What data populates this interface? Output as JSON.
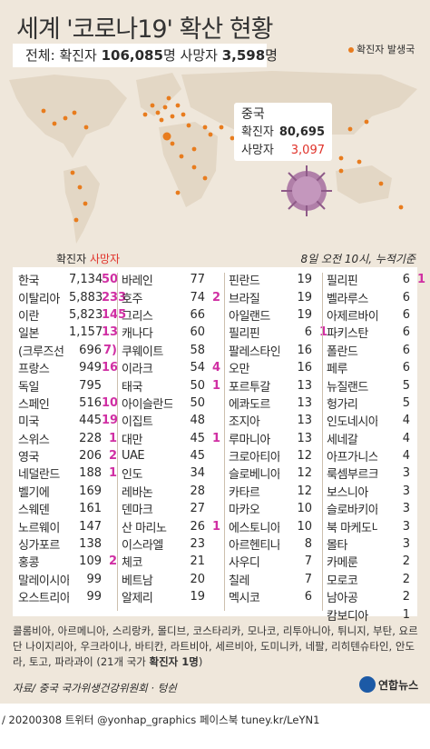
{
  "title": "세계 '코로나19' 확산 현황",
  "total": {
    "prefix": "전체: ",
    "confirmed_label": "확진자 ",
    "confirmed": "106,085",
    "unit1": "명 ",
    "deaths_label": "사망자 ",
    "deaths": "3,598",
    "unit2": "명"
  },
  "legend_dot": "확진자 발생국",
  "china_popup": {
    "name": "중국",
    "confirmed_label": "확진자",
    "confirmed": "80,695",
    "deaths_label": "사망자",
    "deaths": "3,097"
  },
  "as_of": "8일 오전 10시, 누적기준",
  "table_header": {
    "confirmed": "확진자",
    "deaths": "사망자"
  },
  "accent_colors": {
    "deaths": "#d02fa3",
    "dot": "#e87c1e",
    "background": "#efe7db"
  },
  "countries": [
    [
      {
        "name": "한국",
        "confirmed": "7,134",
        "deaths": "50"
      },
      {
        "name": "이탈리아",
        "confirmed": "5,883",
        "deaths": "233"
      },
      {
        "name": "이란",
        "confirmed": "5,823",
        "deaths": "145"
      },
      {
        "name": "일본",
        "confirmed": "1,157",
        "deaths": "13"
      },
      {
        "name": "(크루즈선",
        "confirmed": "696",
        "deaths": "7)"
      },
      {
        "name": "프랑스",
        "confirmed": "949",
        "deaths": "16"
      },
      {
        "name": "독일",
        "confirmed": "795",
        "deaths": ""
      },
      {
        "name": "스페인",
        "confirmed": "516",
        "deaths": "10"
      },
      {
        "name": "미국",
        "confirmed": "445",
        "deaths": "19"
      },
      {
        "name": "스위스",
        "confirmed": "228",
        "deaths": "1"
      },
      {
        "name": "영국",
        "confirmed": "206",
        "deaths": "2"
      },
      {
        "name": "네덜란드",
        "confirmed": "188",
        "deaths": "1"
      },
      {
        "name": "벨기에",
        "confirmed": "169",
        "deaths": ""
      },
      {
        "name": "스웨덴",
        "confirmed": "161",
        "deaths": ""
      },
      {
        "name": "노르웨이",
        "confirmed": "147",
        "deaths": ""
      },
      {
        "name": "싱가포르",
        "confirmed": "138",
        "deaths": ""
      },
      {
        "name": "홍콩",
        "confirmed": "109",
        "deaths": "2"
      },
      {
        "name": "말레이시아",
        "confirmed": "99",
        "deaths": ""
      },
      {
        "name": "오스트리아",
        "confirmed": "99",
        "deaths": ""
      }
    ],
    [
      {
        "name": "바레인",
        "confirmed": "77",
        "deaths": ""
      },
      {
        "name": "호주",
        "confirmed": "74",
        "deaths": "2"
      },
      {
        "name": "그리스",
        "confirmed": "66",
        "deaths": ""
      },
      {
        "name": "캐나다",
        "confirmed": "60",
        "deaths": ""
      },
      {
        "name": "쿠웨이트",
        "confirmed": "58",
        "deaths": ""
      },
      {
        "name": "이라크",
        "confirmed": "54",
        "deaths": "4"
      },
      {
        "name": "태국",
        "confirmed": "50",
        "deaths": "1"
      },
      {
        "name": "아이슬란드",
        "confirmed": "50",
        "deaths": ""
      },
      {
        "name": "이집트",
        "confirmed": "48",
        "deaths": ""
      },
      {
        "name": "대만",
        "confirmed": "45",
        "deaths": "1"
      },
      {
        "name": "UAE",
        "confirmed": "45",
        "deaths": ""
      },
      {
        "name": "인도",
        "confirmed": "34",
        "deaths": ""
      },
      {
        "name": "레바논",
        "confirmed": "28",
        "deaths": ""
      },
      {
        "name": "덴마크",
        "confirmed": "27",
        "deaths": ""
      },
      {
        "name": "산 마리노",
        "confirmed": "26",
        "deaths": "1"
      },
      {
        "name": "이스라엘",
        "confirmed": "23",
        "deaths": ""
      },
      {
        "name": "체코",
        "confirmed": "21",
        "deaths": ""
      },
      {
        "name": "베트남",
        "confirmed": "20",
        "deaths": ""
      },
      {
        "name": "알제리",
        "confirmed": "19",
        "deaths": ""
      }
    ],
    [
      {
        "name": "핀란드",
        "confirmed": "19",
        "deaths": ""
      },
      {
        "name": "브라질",
        "confirmed": "19",
        "deaths": ""
      },
      {
        "name": "아일랜드",
        "confirmed": "19",
        "deaths": ""
      },
      {
        "name": "필리핀",
        "confirmed": "6",
        "deaths": "1"
      },
      {
        "name": "팔레스타인",
        "confirmed": "16",
        "deaths": ""
      },
      {
        "name": "오만",
        "confirmed": "16",
        "deaths": ""
      },
      {
        "name": "포르투갈",
        "confirmed": "13",
        "deaths": ""
      },
      {
        "name": "에콰도르",
        "confirmed": "13",
        "deaths": ""
      },
      {
        "name": "조지아",
        "confirmed": "13",
        "deaths": ""
      },
      {
        "name": "루마니아",
        "confirmed": "13",
        "deaths": ""
      },
      {
        "name": "크로아티아",
        "confirmed": "12",
        "deaths": ""
      },
      {
        "name": "슬로베니아",
        "confirmed": "12",
        "deaths": ""
      },
      {
        "name": "카타르",
        "confirmed": "12",
        "deaths": ""
      },
      {
        "name": "마카오",
        "confirmed": "10",
        "deaths": ""
      },
      {
        "name": "에스토니아",
        "confirmed": "10",
        "deaths": ""
      },
      {
        "name": "아르헨티나",
        "confirmed": "8",
        "deaths": ""
      },
      {
        "name": "사우디",
        "confirmed": "7",
        "deaths": ""
      },
      {
        "name": "칠레",
        "confirmed": "7",
        "deaths": ""
      },
      {
        "name": "멕시코",
        "confirmed": "6",
        "deaths": ""
      }
    ],
    [
      {
        "name": "필리핀",
        "confirmed": "6",
        "deaths": "1"
      },
      {
        "name": "벨라루스",
        "confirmed": "6",
        "deaths": ""
      },
      {
        "name": "아제르바이잔",
        "confirmed": "6",
        "deaths": ""
      },
      {
        "name": "파키스탄",
        "confirmed": "6",
        "deaths": ""
      },
      {
        "name": "폴란드",
        "confirmed": "6",
        "deaths": ""
      },
      {
        "name": "페루",
        "confirmed": "6",
        "deaths": ""
      },
      {
        "name": "뉴질랜드",
        "confirmed": "5",
        "deaths": ""
      },
      {
        "name": "헝가리",
        "confirmed": "5",
        "deaths": ""
      },
      {
        "name": "인도네시아",
        "confirmed": "4",
        "deaths": ""
      },
      {
        "name": "세네갈",
        "confirmed": "4",
        "deaths": ""
      },
      {
        "name": "아프가니스탄",
        "confirmed": "4",
        "deaths": ""
      },
      {
        "name": "룩셈부르크",
        "confirmed": "3",
        "deaths": ""
      },
      {
        "name": "보스니아",
        "confirmed": "3",
        "deaths": ""
      },
      {
        "name": "슬로바키아",
        "confirmed": "3",
        "deaths": ""
      },
      {
        "name": "북 마케도니아",
        "confirmed": "3",
        "deaths": ""
      },
      {
        "name": "몰타",
        "confirmed": "3",
        "deaths": ""
      },
      {
        "name": "카메룬",
        "confirmed": "2",
        "deaths": ""
      },
      {
        "name": "모로코",
        "confirmed": "2",
        "deaths": ""
      },
      {
        "name": "남아공",
        "confirmed": "2",
        "deaths": ""
      },
      {
        "name": "캄보디아",
        "confirmed": "1",
        "deaths": ""
      }
    ]
  ],
  "others_text": "콜롬비아, 아르메니아, 스리랑카, 몰디브, 코스타리카, 모나코, 리투아니아, 튀니지, 부탄, 요르단 나이지리아, 우크라이나, 바티칸, 라트비아, 세르비아, 도미니카, 네팔, 리히텐슈타인, 안도라, 토고, 파라과이 (21개 국가 ",
  "others_bold": "확진자 1명",
  "others_close": ")",
  "source": "자료/ 중국 국가위생건강위원회 · 텅쉰",
  "logo": "연합뉴스",
  "footer": "/ 20200308  트위터 @yonhap_graphics  페이스북 tuney.kr/LeYN1"
}
